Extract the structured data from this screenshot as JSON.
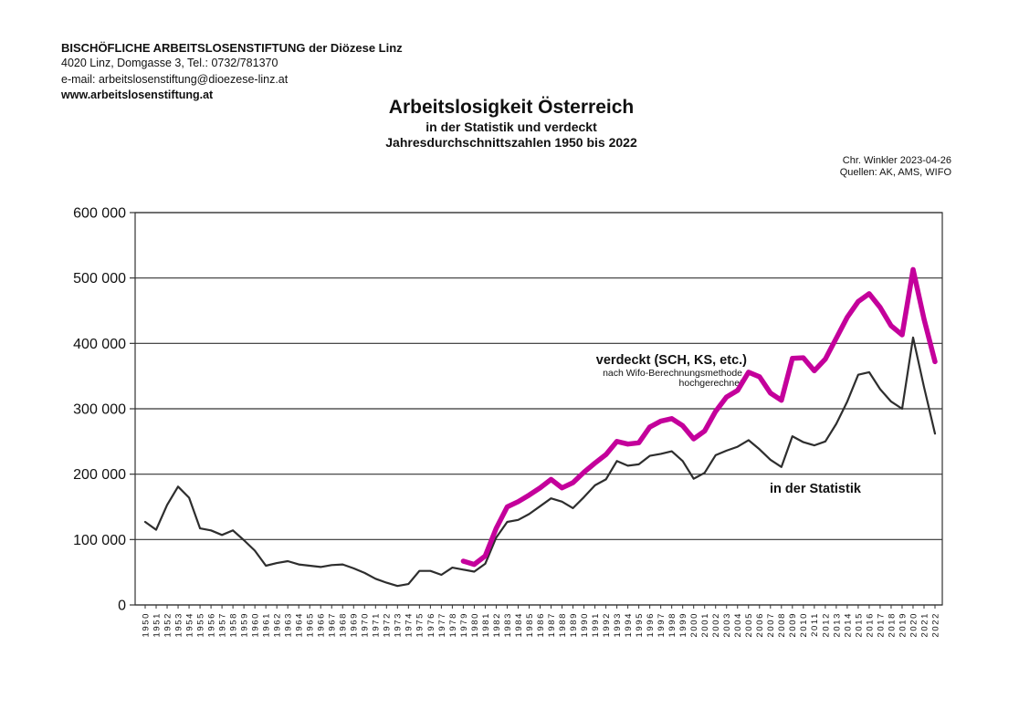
{
  "header": {
    "org": "BISCHÖFLICHE ARBEITSLOSENSTIFTUNG der Diözese Linz",
    "address": "4020 Linz, Domgasse 3, Tel.: 0732/781370",
    "email": "e-mail: arbeitslosenstiftung@dioezese-linz.at",
    "website": "www.arbeitslosenstiftung.at"
  },
  "title_block": {
    "title": "Arbeitslosigkeit Österreich",
    "subtitle1": "in der Statistik und verdeckt",
    "subtitle2": "Jahresdurchschnittszahlen 1950 bis 2022"
  },
  "credit": {
    "author": "Chr. Winkler 2023-04-26",
    "sources": "Quellen: AK, AMS, WIFO"
  },
  "chart_data": {
    "type": "line",
    "title": "Arbeitslosigkeit Österreich in der Statistik und verdeckt, Jahresdurchschnittszahlen 1950 bis 2022",
    "xlabel": "",
    "ylabel": "",
    "ylim": [
      0,
      600000
    ],
    "grid": "horizontal",
    "legend_position": "inline-annotations",
    "y_ticks": [
      0,
      100000,
      200000,
      300000,
      400000,
      500000,
      600000
    ],
    "y_tick_labels": [
      "0",
      "100 000",
      "200 000",
      "300 000",
      "400 000",
      "500 000",
      "600 000"
    ],
    "x": [
      1950,
      1951,
      1952,
      1953,
      1954,
      1955,
      1956,
      1957,
      1958,
      1959,
      1960,
      1961,
      1962,
      1963,
      1964,
      1965,
      1966,
      1967,
      1968,
      1969,
      1970,
      1971,
      1972,
      1973,
      1974,
      1975,
      1976,
      1977,
      1978,
      1979,
      1980,
      1981,
      1982,
      1983,
      1984,
      1985,
      1986,
      1987,
      1988,
      1989,
      1990,
      1991,
      1992,
      1993,
      1994,
      1995,
      1996,
      1997,
      1998,
      1999,
      2000,
      2001,
      2002,
      2003,
      2004,
      2005,
      2006,
      2007,
      2008,
      2009,
      2010,
      2011,
      2012,
      2013,
      2014,
      2015,
      2016,
      2017,
      2018,
      2019,
      2020,
      2021,
      2022
    ],
    "series": [
      {
        "id": "statistik",
        "name": "in der Statistik",
        "color": "#2e2e2e",
        "width": 2.2,
        "values": [
          127000,
          115000,
          153000,
          181000,
          164000,
          117000,
          114000,
          107000,
          114000,
          99000,
          83000,
          60000,
          64000,
          67000,
          62000,
          60000,
          58000,
          61000,
          62000,
          56000,
          49000,
          40000,
          34000,
          29000,
          32000,
          52000,
          52000,
          46000,
          57000,
          54000,
          51000,
          63000,
          103000,
          127000,
          130000,
          139000,
          151000,
          163000,
          158000,
          148000,
          165000,
          183000,
          192000,
          220000,
          213000,
          215000,
          228000,
          231000,
          235000,
          220000,
          193000,
          202000,
          229000,
          236000,
          242000,
          252000,
          238000,
          222000,
          211000,
          258000,
          249000,
          244000,
          250000,
          277000,
          311000,
          352000,
          356000,
          330000,
          311000,
          300000,
          409000,
          333000,
          262000
        ]
      },
      {
        "id": "verdeckt",
        "name": "verdeckt (SCH, KS, etc.)",
        "color": "#c4009b",
        "width": 5.5,
        "values": [
          null,
          null,
          null,
          null,
          null,
          null,
          null,
          null,
          null,
          null,
          null,
          null,
          null,
          null,
          null,
          null,
          null,
          null,
          null,
          null,
          null,
          null,
          null,
          null,
          null,
          null,
          null,
          null,
          null,
          67000,
          62000,
          75000,
          117000,
          150000,
          158000,
          168000,
          179000,
          192000,
          179000,
          187000,
          203000,
          217000,
          230000,
          250000,
          246000,
          248000,
          272000,
          281000,
          285000,
          274000,
          254000,
          266000,
          296000,
          318000,
          328000,
          356000,
          349000,
          324000,
          313000,
          377000,
          378000,
          358000,
          376000,
          408000,
          440000,
          464000,
          476000,
          455000,
          427000,
          413000,
          513000,
          437000,
          372000
        ]
      }
    ],
    "annotations": {
      "verdeckt_label": "verdeckt (SCH, KS, etc.)",
      "verdeckt_sub1": "nach Wifo-Berechnungsmethode",
      "verdeckt_sub2": "hochgerechnet",
      "statistik_label": "in der Statistik"
    }
  }
}
